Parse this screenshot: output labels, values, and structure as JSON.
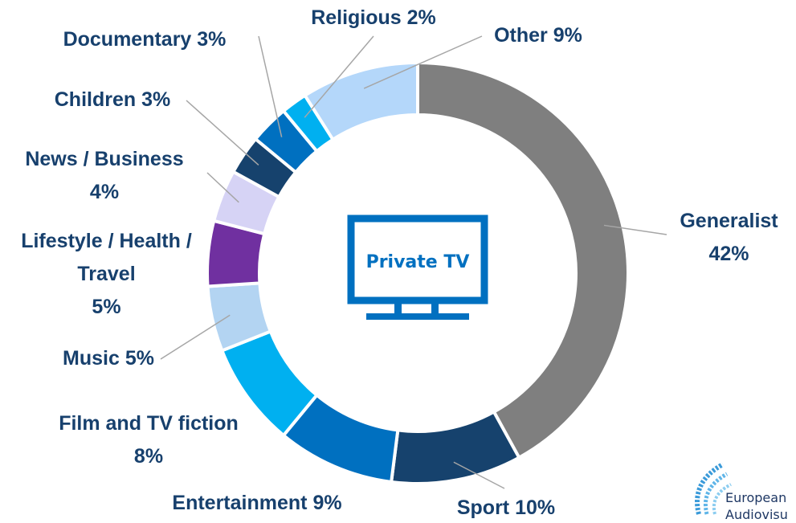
{
  "chart_data": {
    "type": "donut",
    "center_label": "Private TV",
    "categories": [
      "Generalist",
      "Sport",
      "Entertainment",
      "Film and TV fiction",
      "Music",
      "Lifestyle / Health / Travel",
      "News / Business",
      "Children",
      "Documentary",
      "Religious",
      "Other"
    ],
    "values": [
      42,
      10,
      9,
      8,
      5,
      5,
      4,
      3,
      3,
      2,
      9
    ],
    "value_labels": [
      "42%",
      "10%",
      "9%",
      "8%",
      "5%",
      "5%",
      "4%",
      "3%",
      "3%",
      "2%",
      "9%"
    ],
    "colors": [
      "#7f7f7f",
      "#16426d",
      "#0070c0",
      "#00b0f0",
      "#b3d4f2",
      "#7030a0",
      "#d6d3f5",
      "#16426d",
      "#0070c0",
      "#00b0f0",
      "#b4d7fa"
    ]
  },
  "logo": {
    "line1": "European",
    "line2": "Audiovisu"
  }
}
